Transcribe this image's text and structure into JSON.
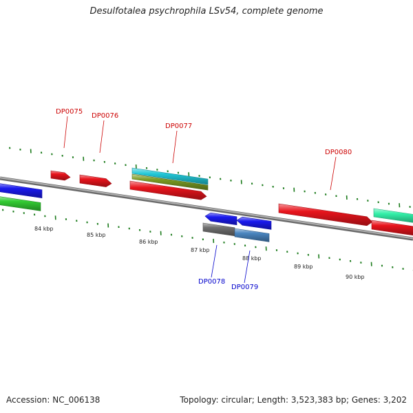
{
  "title": "Desulfotalea psychrophila LSv54, complete genome",
  "footer": {
    "accession": "Accession: NC_006138",
    "topology": "Topology: circular; Length: 3,523,383 bp; Genes: 3,202"
  },
  "colors": {
    "backbone": "#8a8a8a",
    "tick": "#1a7a1a",
    "forward_label": "#cc0000",
    "reverse_label": "#0000cc",
    "feature_red": "#e8141c",
    "feature_blue": "#1a1aee",
    "feature_green": "#33cc33",
    "feature_cyan": "#22c8d8",
    "feature_olive": "#7a9a22",
    "feature_gray": "#6f6f6f",
    "feature_steel": "#4a86c0",
    "feature_mint": "#33f0a8"
  },
  "kbp_labels": [
    "84 kbp",
    "85 kbp",
    "86 kbp",
    "87 kbp",
    "88 kbp",
    "89 kbp",
    "90 kbp"
  ],
  "gene_labels": [
    {
      "id": "DP0075",
      "strand": "forward"
    },
    {
      "id": "DP0076",
      "strand": "forward"
    },
    {
      "id": "DP0077",
      "strand": "forward"
    },
    {
      "id": "DP0078",
      "strand": "reverse"
    },
    {
      "id": "DP0079",
      "strand": "reverse"
    },
    {
      "id": "DP0080",
      "strand": "forward"
    }
  ]
}
